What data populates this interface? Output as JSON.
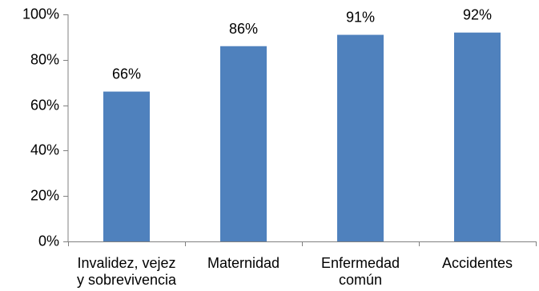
{
  "chart_data": {
    "type": "bar",
    "title": "",
    "xlabel": "",
    "ylabel": "",
    "categories": [
      [
        "Invalidez, vejez",
        "y sobrevivencia"
      ],
      [
        "Maternidad"
      ],
      [
        "Enfermedad",
        "común"
      ],
      [
        "Accidentes"
      ]
    ],
    "values": [
      66,
      86,
      91,
      92
    ],
    "value_labels": [
      "66%",
      "86%",
      "91%",
      "92%"
    ],
    "ylim": [
      0,
      100
    ],
    "yticks": [
      0,
      20,
      40,
      60,
      80,
      100
    ],
    "ytick_labels": [
      "0%",
      "20%",
      "40%",
      "60%",
      "80%",
      "100%"
    ],
    "grid": false,
    "legend": "none",
    "bar_color": "#4f81bd",
    "axis_color": "#808080"
  }
}
